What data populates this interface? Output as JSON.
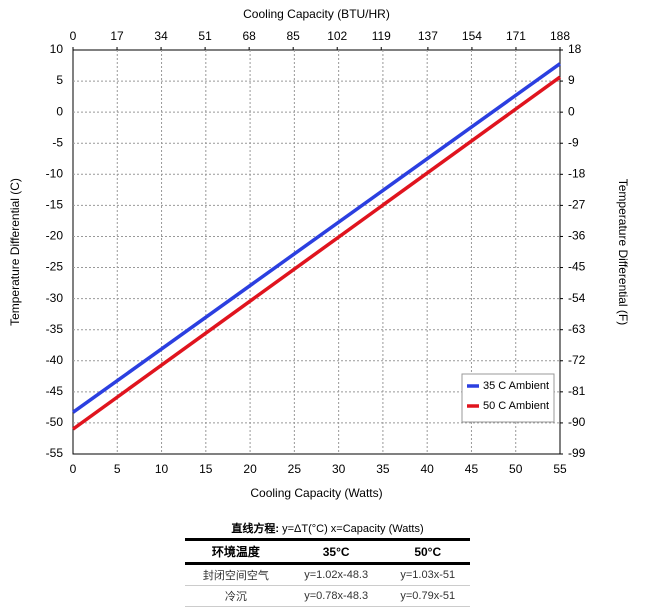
{
  "chart_data": {
    "type": "line",
    "x_label": "Cooling Capacity (Watts)",
    "x2_label": "Cooling Capacity (BTU/HR)",
    "y_label": "Temperature Differential (C)",
    "y2_label": "Temperature Differential (F)",
    "x": [
      0,
      55
    ],
    "series": [
      {
        "name": "35 C Ambient",
        "color": "#2b3fe0",
        "values": [
          -48.3,
          7.8
        ]
      },
      {
        "name": "50 C Ambient",
        "color": "#e0141e",
        "values": [
          -51,
          5.65
        ]
      }
    ],
    "xlim": [
      0,
      55
    ],
    "xticks": [
      0,
      5,
      10,
      15,
      20,
      25,
      30,
      35,
      40,
      45,
      50,
      55
    ],
    "x2lim": [
      0,
      188
    ],
    "x2ticks": [
      0,
      17,
      34,
      51,
      68,
      85,
      102,
      119,
      137,
      154,
      171,
      188
    ],
    "ylim": [
      -55,
      10
    ],
    "yticks": [
      -55,
      -50,
      -45,
      -40,
      -35,
      -30,
      -25,
      -20,
      -15,
      -10,
      -5,
      0,
      5,
      10
    ],
    "y2lim": [
      -99,
      18
    ],
    "y2ticks": [
      -99,
      -90,
      -81,
      -72,
      -63,
      -54,
      -45,
      -36,
      -27,
      -18,
      -9,
      0,
      9,
      18
    ],
    "grid": true,
    "legend": "lower right"
  },
  "table": {
    "caption_label": "直线方程:",
    "caption_text": "y=ΔT(°C)  x=Capacity (Watts)",
    "rows": [
      [
        "环境温度",
        "35°C",
        "50°C"
      ],
      [
        "封闭空间空气",
        "y=1.02x-48.3",
        "y=1.03x-51"
      ],
      [
        "冷沉",
        "y=0.78x-48.3",
        "y=0.79x-51"
      ]
    ]
  }
}
